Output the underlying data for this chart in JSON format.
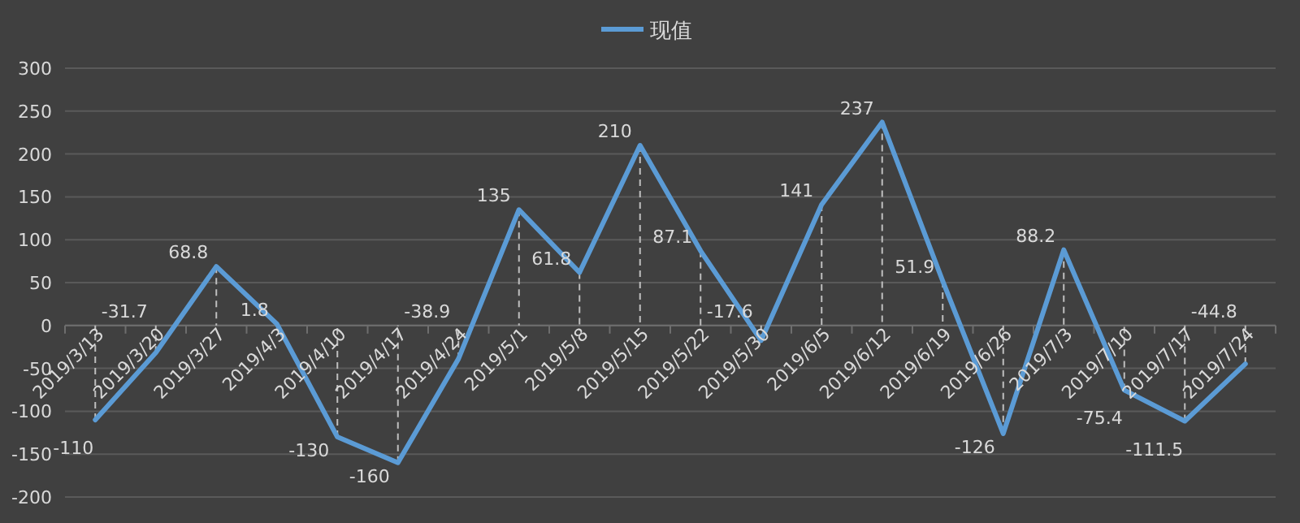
{
  "chart_data": {
    "type": "line",
    "categories": [
      "2019/3/13",
      "2019/3/20",
      "2019/3/27",
      "2019/4/3",
      "2019/4/10",
      "2019/4/17",
      "2019/4/24",
      "2019/5/1",
      "2019/5/8",
      "2019/5/15",
      "2019/5/22",
      "2019/5/30",
      "2019/6/5",
      "2019/6/12",
      "2019/6/19",
      "2019/6/26",
      "2019/7/3",
      "2019/7/10",
      "2019/7/17",
      "2019/7/24"
    ],
    "series": [
      {
        "name": "现值",
        "color": "#5b9bd5",
        "values": [
          -110,
          -31.7,
          68.8,
          1.8,
          -130,
          -160,
          -38.9,
          135,
          61.8,
          210,
          87.1,
          -17.6,
          141,
          237,
          51.9,
          -126,
          88.2,
          -75.4,
          -111.5,
          -44.8
        ]
      }
    ],
    "ylim": [
      -200,
      300
    ],
    "yticks": [
      -200,
      -150,
      -100,
      -50,
      0,
      50,
      100,
      150,
      200,
      250,
      300
    ],
    "grid": "y",
    "legend": "top",
    "data_labels": true,
    "marker": "none",
    "line_style": "solid"
  }
}
